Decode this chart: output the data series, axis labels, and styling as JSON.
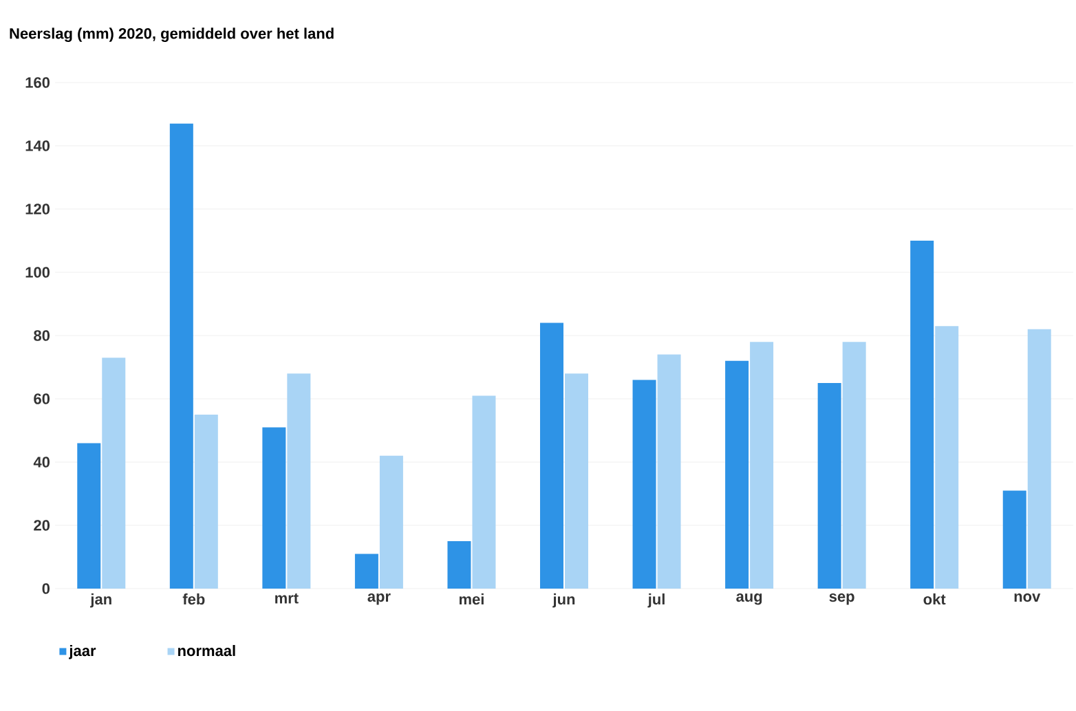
{
  "chart_data": {
    "type": "bar",
    "title": "Neerslag (mm) 2020, gemiddeld over het land",
    "categories": [
      "jan",
      "feb",
      "mrt",
      "apr",
      "mei",
      "jun",
      "jul",
      "aug",
      "sep",
      "okt",
      "nov"
    ],
    "series": [
      {
        "name": "jaar",
        "color": "#2e93e6",
        "values": [
          46,
          147,
          51,
          11,
          15,
          84,
          66,
          72,
          65,
          110,
          31
        ]
      },
      {
        "name": "normaal",
        "color": "#a9d4f5",
        "values": [
          73,
          55,
          68,
          42,
          61,
          68,
          74,
          78,
          78,
          83,
          82
        ]
      }
    ],
    "ylim": [
      0,
      160
    ],
    "yticks": [
      0,
      20,
      40,
      60,
      80,
      100,
      120,
      140,
      160
    ],
    "grid": "y",
    "legend": "bottom left"
  }
}
